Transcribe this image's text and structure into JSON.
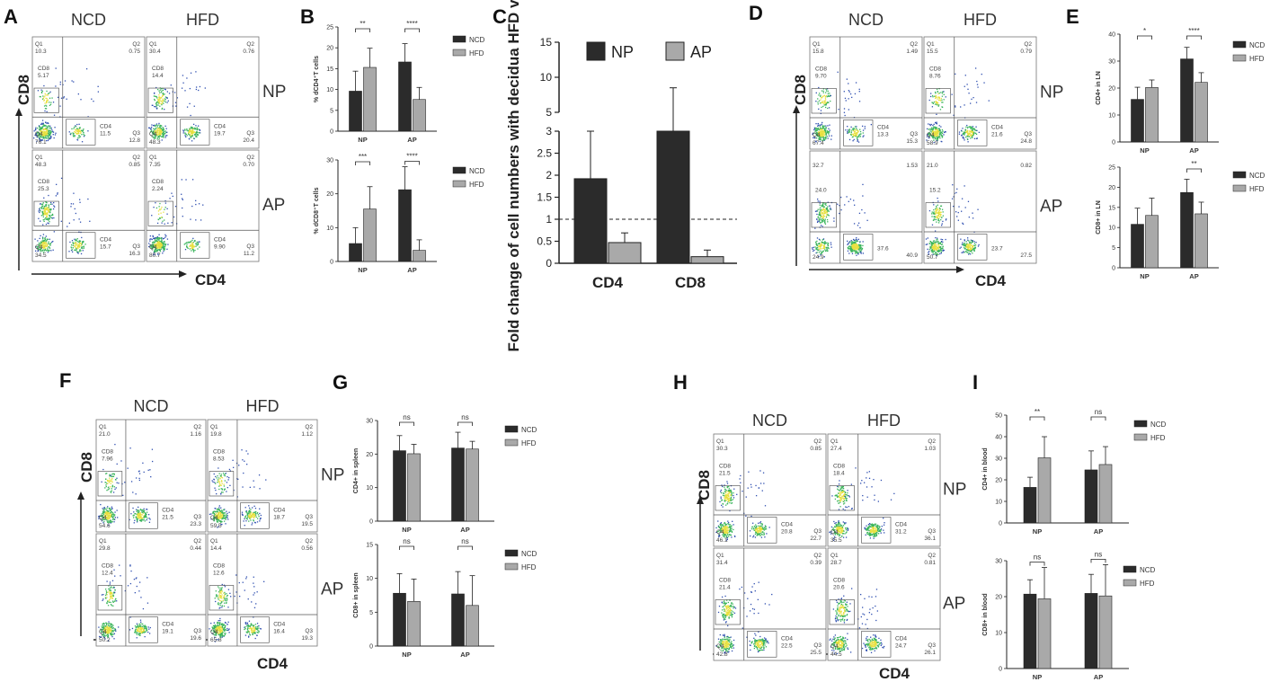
{
  "figure": {
    "panels": [
      {
        "id": "A",
        "letter": "A"
      },
      {
        "id": "B",
        "letter": "B"
      },
      {
        "id": "C",
        "letter": "C"
      },
      {
        "id": "D",
        "letter": "D"
      },
      {
        "id": "E",
        "letter": "E"
      },
      {
        "id": "F",
        "letter": "F"
      },
      {
        "id": "G",
        "letter": "G"
      },
      {
        "id": "H",
        "letter": "H"
      },
      {
        "id": "I",
        "letter": "I"
      }
    ]
  },
  "flow": [
    {
      "id": "A",
      "col_labels": [
        "NCD",
        "HFD"
      ],
      "row_labels": [
        "NP",
        "AP"
      ],
      "x_axis": "CD4",
      "y_axis": "CD8",
      "plots": [
        {
          "q1": "Q1",
          "q1v": "10.3",
          "q2": "Q2",
          "q2v": "0.75",
          "cd8": "CD8",
          "cd8v": "5.17",
          "cd4": "CD4",
          "cd4v": "11.5",
          "q3": "Q3",
          "q3v": "12.8",
          "q4": "Q4",
          "q4v": "76.1"
        },
        {
          "q1": "Q1",
          "q1v": "30.4",
          "q2": "Q2",
          "q2v": "0.76",
          "cd8": "CD8",
          "cd8v": "14.4",
          "cd4": "CD4",
          "cd4v": "19.7",
          "q3": "Q3",
          "q3v": "20.4",
          "q4": "Q4",
          "q4v": "48.3"
        },
        {
          "q1": "Q1",
          "q1v": "48.3",
          "q2": "Q2",
          "q2v": "0.85",
          "cd8": "CD8",
          "cd8v": "25.3",
          "cd4": "CD4",
          "cd4v": "15.7",
          "q3": "Q3",
          "q3v": "16.3",
          "q4": "Q4",
          "q4v": "34.5"
        },
        {
          "q1": "Q1",
          "q1v": "7.35",
          "q2": "Q2",
          "q2v": "0.70",
          "cd8": "CD8",
          "cd8v": "2.24",
          "cd4": "CD4",
          "cd4v": "9.90",
          "q3": "Q3",
          "q3v": "11.2",
          "q4": "Q4",
          "q4v": "80.7"
        }
      ]
    },
    {
      "id": "D",
      "col_labels": [
        "NCD",
        "HFD"
      ],
      "row_labels": [
        "NP",
        "AP"
      ],
      "x_axis": "CD4",
      "y_axis": "CD8",
      "plots": [
        {
          "q1": "Q1",
          "q1v": "15.8",
          "q2": "Q2",
          "q2v": "1.49",
          "cd8": "CD8",
          "cd8v": "9.70",
          "cd4": "CD4",
          "cd4v": "13.3",
          "q3": "Q3",
          "q3v": "15.3",
          "q4": "Q4",
          "q4v": "67.4"
        },
        {
          "q1": "Q1",
          "q1v": "15.5",
          "q2": "Q2",
          "q2v": "0.79",
          "cd8": "CD8",
          "cd8v": "8.76",
          "cd4": "CD4",
          "cd4v": "21.6",
          "q3": "Q3",
          "q3v": "24.8",
          "q4": "Q4",
          "q4v": "58.9"
        },
        {
          "q1": "",
          "q1v": "32.7",
          "q2": "",
          "q2v": "1.53",
          "cd8": "",
          "cd8v": "24.0",
          "cd4": "",
          "cd4v": "37.6",
          "q3": "",
          "q3v": "40.9",
          "q4": "",
          "q4v": "24.9"
        },
        {
          "q1": "",
          "q1v": "21.0",
          "q2": "",
          "q2v": "0.82",
          "cd8": "",
          "cd8v": "15.2",
          "cd4": "",
          "cd4v": "23.7",
          "q3": "",
          "q3v": "27.5",
          "q4": "",
          "q4v": "50.7"
        }
      ]
    },
    {
      "id": "F",
      "col_labels": [
        "NCD",
        "HFD"
      ],
      "row_labels": [
        "NP",
        "AP"
      ],
      "x_axis": "CD4",
      "y_axis": "CD8",
      "plots": [
        {
          "q1": "Q1",
          "q1v": "21.0",
          "q2": "Q2",
          "q2v": "1.16",
          "cd8": "CD8",
          "cd8v": "7.96",
          "cd4": "CD4",
          "cd4v": "21.5",
          "q3": "Q3",
          "q3v": "23.3",
          "q4": "Q4",
          "q4v": "54.6"
        },
        {
          "q1": "Q1",
          "q1v": "19.8",
          "q2": "Q2",
          "q2v": "1.12",
          "cd8": "CD8",
          "cd8v": "8.53",
          "cd4": "CD4",
          "cd4v": "18.7",
          "q3": "Q3",
          "q3v": "19.5",
          "q4": "Q4",
          "q4v": "59.5"
        },
        {
          "q1": "Q1",
          "q1v": "29.8",
          "q2": "Q2",
          "q2v": "0.44",
          "cd8": "CD8",
          "cd8v": "12.4",
          "cd4": "CD4",
          "cd4v": "19.1",
          "q3": "Q3",
          "q3v": "19.6",
          "q4": "Q4",
          "q4v": "50.2"
        },
        {
          "q1": "Q1",
          "q1v": "14.4",
          "q2": "Q2",
          "q2v": "0.56",
          "cd8": "CD8",
          "cd8v": "12.6",
          "cd4": "CD4",
          "cd4v": "16.4",
          "q3": "Q3",
          "q3v": "19.3",
          "q4": "Q4",
          "q4v": "65.8"
        }
      ]
    },
    {
      "id": "H",
      "col_labels": [
        "NCD",
        "HFD"
      ],
      "row_labels": [
        "NP",
        "AP"
      ],
      "x_axis": "CD4",
      "y_axis": "CD8",
      "plots": [
        {
          "q1": "Q1",
          "q1v": "30.3",
          "q2": "Q2",
          "q2v": "0.85",
          "cd8": "CD8",
          "cd8v": "21.5",
          "cd4": "CD4",
          "cd4v": "20.8",
          "q3": "Q3",
          "q3v": "22.7",
          "q4": "Q4",
          "q4v": "46.1"
        },
        {
          "q1": "Q1",
          "q1v": "27.4",
          "q2": "Q2",
          "q2v": "1.03",
          "cd8": "CD8",
          "cd8v": "18.4",
          "cd4": "CD4",
          "cd4v": "31.2",
          "q3": "Q3",
          "q3v": "36.1",
          "q4": "Q4",
          "q4v": "35.5"
        },
        {
          "q1": "Q1",
          "q1v": "31.4",
          "q2": "Q2",
          "q2v": "0.39",
          "cd8": "CD8",
          "cd8v": "21.4",
          "cd4": "CD4",
          "cd4v": "22.5",
          "q3": "Q3",
          "q3v": "25.5",
          "q4": "Q4",
          "q4v": "42.8"
        },
        {
          "q1": "Q1",
          "q1v": "28.7",
          "q2": "Q2",
          "q2v": "0.81",
          "cd8": "CD8",
          "cd8v": "20.6",
          "cd4": "CD4",
          "cd4v": "24.7",
          "q3": "Q3",
          "q3v": "26.1",
          "q4": "Q4",
          "q4v": "44.5"
        }
      ]
    }
  ],
  "chart_data": [
    {
      "id": "B1",
      "type": "bar",
      "categories": [
        "NP",
        "AP"
      ],
      "series": [
        {
          "name": "NCD",
          "values": [
            9.6,
            16.6
          ],
          "errors": [
            4.8,
            4.4
          ]
        },
        {
          "name": "HFD",
          "values": [
            15.3,
            7.6
          ],
          "errors": [
            4.6,
            2.9
          ]
        }
      ],
      "ylabel": "% dCD4⁺T cells",
      "ylim": [
        0,
        25
      ],
      "yticks": [
        0,
        5,
        10,
        15,
        20,
        25
      ],
      "significance": [
        "**",
        "****"
      ]
    },
    {
      "id": "B2",
      "type": "bar",
      "categories": [
        "NP",
        "AP"
      ],
      "series": [
        {
          "name": "NCD",
          "values": [
            5.3,
            21.2
          ],
          "errors": [
            4.7,
            6.8
          ]
        },
        {
          "name": "HFD",
          "values": [
            15.5,
            3.3
          ],
          "errors": [
            6.6,
            3.1
          ]
        }
      ],
      "ylabel": "% dCD8⁺T cells",
      "ylim": [
        0,
        30
      ],
      "yticks": [
        0,
        10,
        20,
        30
      ],
      "significance": [
        "***",
        "****"
      ]
    },
    {
      "id": "C",
      "type": "bar",
      "categories": [
        "CD4",
        "CD8"
      ],
      "series": [
        {
          "name": "NP",
          "values": [
            1.92,
            4.7
          ],
          "errors": [
            1.08,
            3.8
          ]
        },
        {
          "name": "AP",
          "values": [
            0.47,
            0.15
          ],
          "errors": [
            0.22,
            0.15
          ]
        }
      ],
      "ylabel": "Fold change of cell numbers with decidua HFD vs NCD",
      "ylim": [
        0,
        15
      ],
      "axis_break": [
        3,
        5
      ],
      "yticks": [
        0.0,
        0.5,
        1.0,
        1.5,
        2.0,
        2.5,
        3.0,
        5,
        10,
        15
      ],
      "reference_line": 1.0
    },
    {
      "id": "E1",
      "type": "bar",
      "categories": [
        "NP",
        "AP"
      ],
      "series": [
        {
          "name": "NCD",
          "values": [
            15.8,
            30.8
          ],
          "errors": [
            4.5,
            4.3
          ]
        },
        {
          "name": "HFD",
          "values": [
            20.2,
            22.1
          ],
          "errors": [
            2.8,
            3.6
          ]
        }
      ],
      "ylabel": "CD4+ in LN",
      "ylim": [
        0,
        40
      ],
      "yticks": [
        0,
        10,
        20,
        30,
        40
      ],
      "significance": [
        "*",
        "****"
      ]
    },
    {
      "id": "E2",
      "type": "bar",
      "categories": [
        "NP",
        "AP"
      ],
      "series": [
        {
          "name": "NCD",
          "values": [
            10.8,
            18.7
          ],
          "errors": [
            4.0,
            3.3
          ]
        },
        {
          "name": "HFD",
          "values": [
            13.0,
            13.4
          ],
          "errors": [
            4.3,
            2.9
          ]
        }
      ],
      "ylabel": "CD8+ in LN",
      "ylim": [
        0,
        25
      ],
      "yticks": [
        0,
        5,
        10,
        15,
        20,
        25
      ],
      "significance": [
        "",
        "**"
      ]
    },
    {
      "id": "G1",
      "type": "bar",
      "categories": [
        "NP",
        "AP"
      ],
      "series": [
        {
          "name": "NCD",
          "values": [
            21.0,
            21.8
          ],
          "errors": [
            4.5,
            4.7
          ]
        },
        {
          "name": "HFD",
          "values": [
            20.1,
            21.5
          ],
          "errors": [
            2.8,
            2.3
          ]
        }
      ],
      "ylabel": "CD4+ in spleen",
      "ylim": [
        0,
        30
      ],
      "yticks": [
        0,
        10,
        20,
        30
      ],
      "significance": [
        "ns",
        "ns"
      ]
    },
    {
      "id": "G2",
      "type": "bar",
      "categories": [
        "NP",
        "AP"
      ],
      "series": [
        {
          "name": "NCD",
          "values": [
            7.8,
            7.7
          ],
          "errors": [
            2.9,
            3.3
          ]
        },
        {
          "name": "HFD",
          "values": [
            6.6,
            6.0
          ],
          "errors": [
            3.3,
            4.4
          ]
        }
      ],
      "ylabel": "CD8+ in spleen",
      "ylim": [
        0,
        15
      ],
      "yticks": [
        0,
        5,
        10,
        15
      ],
      "significance": [
        "ns",
        "ns"
      ]
    },
    {
      "id": "I1",
      "type": "bar",
      "categories": [
        "NP",
        "AP"
      ],
      "series": [
        {
          "name": "NCD",
          "values": [
            16.5,
            24.6
          ],
          "errors": [
            4.7,
            8.8
          ]
        },
        {
          "name": "HFD",
          "values": [
            30.2,
            27.1
          ],
          "errors": [
            9.8,
            8.3
          ]
        }
      ],
      "ylabel": "CD4+ in blood",
      "ylim": [
        0,
        50
      ],
      "yticks": [
        0,
        10,
        20,
        30,
        40,
        50
      ],
      "significance": [
        "**",
        "ns"
      ]
    },
    {
      "id": "I2",
      "type": "bar",
      "categories": [
        "NP",
        "AP"
      ],
      "series": [
        {
          "name": "NCD",
          "values": [
            20.7,
            20.9
          ],
          "errors": [
            4.0,
            5.3
          ]
        },
        {
          "name": "HFD",
          "values": [
            19.4,
            20.2
          ],
          "errors": [
            8.7,
            8.7
          ]
        }
      ],
      "ylabel": "CD8+ in blood",
      "ylim": [
        0,
        30
      ],
      "yticks": [
        0,
        10,
        20,
        30
      ],
      "significance": [
        "ns",
        "ns"
      ]
    }
  ],
  "colors": {
    "ncd": "#2b2b2b",
    "hfd": "#a9a9a9",
    "axis": "#222222",
    "frame": "#777777",
    "scatter": "#2f4fb0",
    "dense": "#39b45a",
    "hot": "#e8e040"
  }
}
